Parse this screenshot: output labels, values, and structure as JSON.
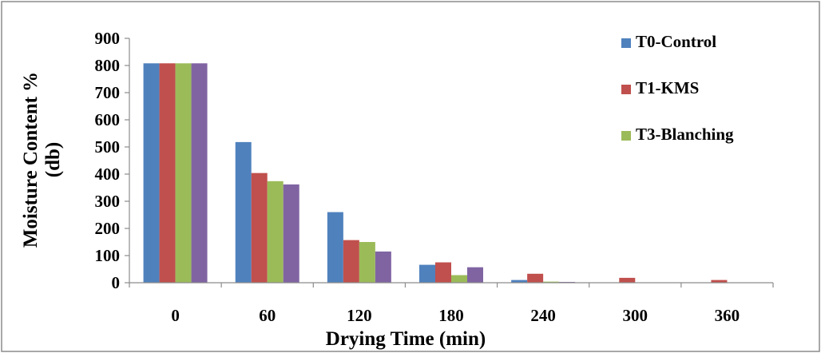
{
  "chart_data": {
    "type": "bar",
    "title": "",
    "xlabel": "Drying Time (min)",
    "ylabel_line1": "Moisture Content %",
    "ylabel_line2": "(db)",
    "categories": [
      "0",
      "60",
      "120",
      "180",
      "240",
      "300",
      "360"
    ],
    "ylim": [
      0,
      900
    ],
    "yticks": [
      "0",
      "100",
      "200",
      "300",
      "400",
      "500",
      "600",
      "700",
      "800",
      "900"
    ],
    "grid": false,
    "legend_position": "top-right",
    "series": [
      {
        "name": "T0-Control",
        "color": "#4F81BD",
        "values": [
          808,
          518,
          260,
          66,
          10,
          0,
          0
        ]
      },
      {
        "name": "T1-KMS",
        "color": "#C0504D",
        "values": [
          808,
          404,
          157,
          75,
          33,
          18,
          10
        ]
      },
      {
        "name": "T3-Blanching",
        "color": "#9BBB59",
        "values": [
          808,
          374,
          150,
          28,
          4,
          0,
          0
        ]
      },
      {
        "color": "#8064A2",
        "values": [
          808,
          362,
          115,
          57,
          3,
          0,
          0
        ]
      }
    ]
  }
}
